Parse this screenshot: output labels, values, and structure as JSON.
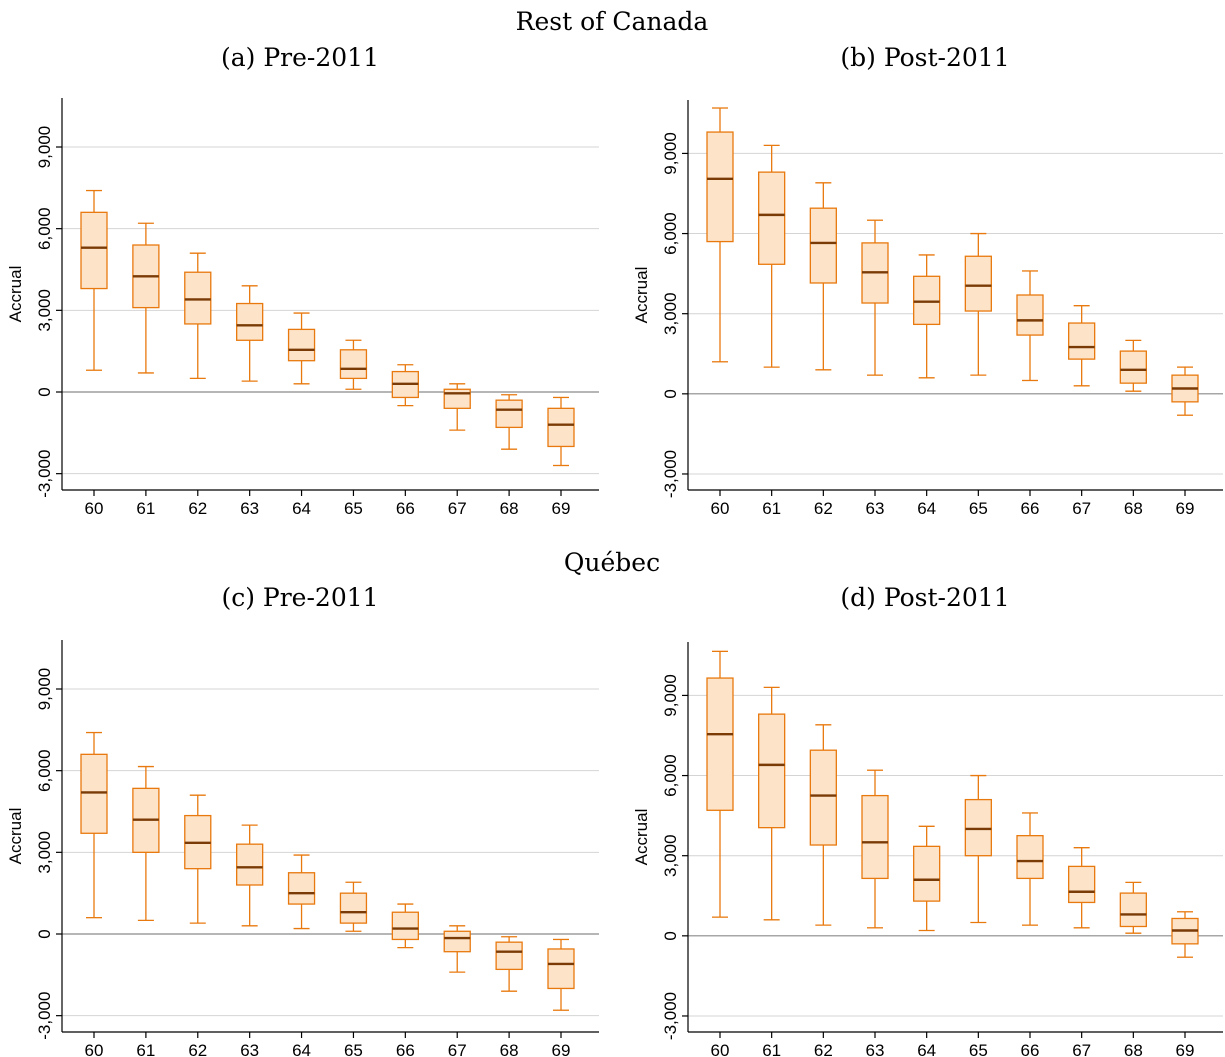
{
  "figure": {
    "section_titles": [
      "Rest of Canada",
      "Québec"
    ]
  },
  "chart_data": [
    {
      "type": "box",
      "title": "(a) Pre-2011",
      "group": "Rest of Canada",
      "xlabel": "",
      "ylabel": "Accrual",
      "categories": [
        "60",
        "61",
        "62",
        "63",
        "64",
        "65",
        "66",
        "67",
        "68",
        "69"
      ],
      "ylim": [
        -3600,
        10800
      ],
      "yticks": [
        -3000,
        0,
        3000,
        6000,
        9000
      ],
      "ytick_labels": [
        "-3,000",
        "0",
        "3,000",
        "6,000",
        "9,000"
      ],
      "grid": true,
      "box_color": "#e8790e",
      "box_fill": "#fde3c8",
      "median_color": "#7a3b06",
      "boxes": [
        {
          "category": "60",
          "whisker_low": 800,
          "q1": 3800,
          "median": 5300,
          "q3": 6600,
          "whisker_high": 7400
        },
        {
          "category": "61",
          "whisker_low": 700,
          "q1": 3100,
          "median": 4250,
          "q3": 5400,
          "whisker_high": 6200
        },
        {
          "category": "62",
          "whisker_low": 500,
          "q1": 2500,
          "median": 3400,
          "q3": 4400,
          "whisker_high": 5100
        },
        {
          "category": "63",
          "whisker_low": 400,
          "q1": 1900,
          "median": 2450,
          "q3": 3250,
          "whisker_high": 3900
        },
        {
          "category": "64",
          "whisker_low": 300,
          "q1": 1150,
          "median": 1550,
          "q3": 2300,
          "whisker_high": 2900
        },
        {
          "category": "65",
          "whisker_low": 100,
          "q1": 500,
          "median": 850,
          "q3": 1550,
          "whisker_high": 1900
        },
        {
          "category": "66",
          "whisker_low": -500,
          "q1": -200,
          "median": 300,
          "q3": 750,
          "whisker_high": 1000
        },
        {
          "category": "67",
          "whisker_low": -1400,
          "q1": -600,
          "median": -50,
          "q3": 100,
          "whisker_high": 300
        },
        {
          "category": "68",
          "whisker_low": -2100,
          "q1": -1300,
          "median": -650,
          "q3": -300,
          "whisker_high": -100
        },
        {
          "category": "69",
          "whisker_low": -2700,
          "q1": -2000,
          "median": -1200,
          "q3": -600,
          "whisker_high": -200
        }
      ]
    },
    {
      "type": "box",
      "title": "(b) Post-2011",
      "group": "Rest of Canada",
      "xlabel": "",
      "ylabel": "Accrual",
      "categories": [
        "60",
        "61",
        "62",
        "63",
        "64",
        "65",
        "66",
        "67",
        "68",
        "69"
      ],
      "ylim": [
        -3600,
        11000
      ],
      "yticks": [
        -3000,
        0,
        3000,
        6000,
        9000
      ],
      "ytick_labels": [
        "-3,000",
        "0",
        "3,000",
        "6,000",
        "9,000"
      ],
      "grid": true,
      "box_color": "#e8790e",
      "box_fill": "#fde3c8",
      "median_color": "#7a3b06",
      "boxes": [
        {
          "category": "60",
          "whisker_low": 1200,
          "q1": 5700,
          "median": 8050,
          "q3": 9800,
          "whisker_high": 10700
        },
        {
          "category": "61",
          "whisker_low": 1000,
          "q1": 4850,
          "median": 6700,
          "q3": 8300,
          "whisker_high": 9300
        },
        {
          "category": "62",
          "whisker_low": 900,
          "q1": 4150,
          "median": 5650,
          "q3": 6950,
          "whisker_high": 7900
        },
        {
          "category": "63",
          "whisker_low": 700,
          "q1": 3400,
          "median": 4550,
          "q3": 5650,
          "whisker_high": 6500
        },
        {
          "category": "64",
          "whisker_low": 600,
          "q1": 2600,
          "median": 3450,
          "q3": 4400,
          "whisker_high": 5200
        },
        {
          "category": "65",
          "whisker_low": 700,
          "q1": 3100,
          "median": 4050,
          "q3": 5150,
          "whisker_high": 6000
        },
        {
          "category": "66",
          "whisker_low": 500,
          "q1": 2200,
          "median": 2750,
          "q3": 3700,
          "whisker_high": 4600
        },
        {
          "category": "67",
          "whisker_low": 300,
          "q1": 1300,
          "median": 1750,
          "q3": 2650,
          "whisker_high": 3300
        },
        {
          "category": "68",
          "whisker_low": 100,
          "q1": 400,
          "median": 900,
          "q3": 1600,
          "whisker_high": 2000
        },
        {
          "category": "69",
          "whisker_low": -800,
          "q1": -300,
          "median": 200,
          "q3": 700,
          "whisker_high": 1000
        }
      ]
    },
    {
      "type": "box",
      "title": "(c) Pre-2011",
      "group": "Québec",
      "xlabel": "",
      "ylabel": "Accrual",
      "categories": [
        "60",
        "61",
        "62",
        "63",
        "64",
        "65",
        "66",
        "67",
        "68",
        "69"
      ],
      "ylim": [
        -3600,
        10800
      ],
      "yticks": [
        -3000,
        0,
        3000,
        6000,
        9000
      ],
      "ytick_labels": [
        "-3,000",
        "0",
        "3,000",
        "6,000",
        "9,000"
      ],
      "grid": true,
      "box_color": "#e8790e",
      "box_fill": "#fde3c8",
      "median_color": "#7a3b06",
      "boxes": [
        {
          "category": "60",
          "whisker_low": 600,
          "q1": 3700,
          "median": 5200,
          "q3": 6600,
          "whisker_high": 7400
        },
        {
          "category": "61",
          "whisker_low": 500,
          "q1": 3000,
          "median": 4200,
          "q3": 5350,
          "whisker_high": 6150
        },
        {
          "category": "62",
          "whisker_low": 400,
          "q1": 2400,
          "median": 3350,
          "q3": 4350,
          "whisker_high": 5100
        },
        {
          "category": "63",
          "whisker_low": 300,
          "q1": 1800,
          "median": 2450,
          "q3": 3300,
          "whisker_high": 4000
        },
        {
          "category": "64",
          "whisker_low": 200,
          "q1": 1100,
          "median": 1500,
          "q3": 2250,
          "whisker_high": 2900
        },
        {
          "category": "65",
          "whisker_low": 100,
          "q1": 400,
          "median": 800,
          "q3": 1500,
          "whisker_high": 1900
        },
        {
          "category": "66",
          "whisker_low": -500,
          "q1": -200,
          "median": 200,
          "q3": 800,
          "whisker_high": 1100
        },
        {
          "category": "67",
          "whisker_low": -1400,
          "q1": -650,
          "median": -150,
          "q3": 100,
          "whisker_high": 300
        },
        {
          "category": "68",
          "whisker_low": -2100,
          "q1": -1300,
          "median": -650,
          "q3": -300,
          "whisker_high": -100
        },
        {
          "category": "69",
          "whisker_low": -2800,
          "q1": -2000,
          "median": -1100,
          "q3": -550,
          "whisker_high": -200
        }
      ]
    },
    {
      "type": "box",
      "title": "(d) Post-2011",
      "group": "Québec",
      "xlabel": "",
      "ylabel": "Accrual",
      "categories": [
        "60",
        "61",
        "62",
        "63",
        "64",
        "65",
        "66",
        "67",
        "68",
        "69"
      ],
      "ylim": [
        -3600,
        11000
      ],
      "yticks": [
        -3000,
        0,
        3000,
        6000,
        9000
      ],
      "ytick_labels": [
        "-3,000",
        "0",
        "3,000",
        "6,000",
        "9,000"
      ],
      "grid": true,
      "box_color": "#e8790e",
      "box_fill": "#fde3c8",
      "median_color": "#7a3b06",
      "boxes": [
        {
          "category": "60",
          "whisker_low": 700,
          "q1": 4700,
          "median": 7550,
          "q3": 9650,
          "whisker_high": 10650
        },
        {
          "category": "61",
          "whisker_low": 600,
          "q1": 4050,
          "median": 6400,
          "q3": 8300,
          "whisker_high": 9300
        },
        {
          "category": "62",
          "whisker_low": 400,
          "q1": 3400,
          "median": 5250,
          "q3": 6950,
          "whisker_high": 7900
        },
        {
          "category": "63",
          "whisker_low": 300,
          "q1": 2150,
          "median": 3500,
          "q3": 5250,
          "whisker_high": 6200
        },
        {
          "category": "64",
          "whisker_low": 200,
          "q1": 1300,
          "median": 2100,
          "q3": 3350,
          "whisker_high": 4100
        },
        {
          "category": "65",
          "whisker_low": 500,
          "q1": 3000,
          "median": 4000,
          "q3": 5100,
          "whisker_high": 6000
        },
        {
          "category": "66",
          "whisker_low": 400,
          "q1": 2150,
          "median": 2800,
          "q3": 3750,
          "whisker_high": 4600
        },
        {
          "category": "67",
          "whisker_low": 300,
          "q1": 1250,
          "median": 1650,
          "q3": 2600,
          "whisker_high": 3300
        },
        {
          "category": "68",
          "whisker_low": 100,
          "q1": 350,
          "median": 800,
          "q3": 1600,
          "whisker_high": 2000
        },
        {
          "category": "69",
          "whisker_low": -800,
          "q1": -300,
          "median": 200,
          "q3": 650,
          "whisker_high": 900
        }
      ]
    }
  ]
}
